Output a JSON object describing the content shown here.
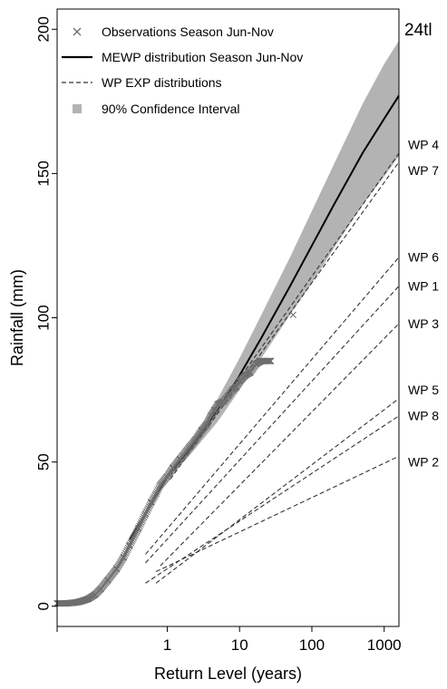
{
  "chart_data": {
    "type": "line",
    "title": "",
    "duration_label": "24tl",
    "xlabel": "Return Level (years)",
    "ylabel": "Rainfall (mm)",
    "x_scale": "log",
    "xlim": [
      0.03,
      1600
    ],
    "ylim": [
      -7,
      207
    ],
    "x_ticks": [
      {
        "value": 0.03,
        "label": ""
      },
      {
        "value": 1,
        "label": "1"
      },
      {
        "value": 10,
        "label": "10"
      },
      {
        "value": 100,
        "label": "100"
      },
      {
        "value": 1000,
        "label": "1000"
      }
    ],
    "y_ticks": [
      0,
      50,
      100,
      150,
      200
    ],
    "grid": false,
    "legend_position": "top-left",
    "legend": [
      {
        "symbol": "cross",
        "label": "Observations Season Jun-Nov"
      },
      {
        "symbol": "solid-line",
        "label": "MEWP distribution Season Jun-Nov"
      },
      {
        "symbol": "dashed-line",
        "label": "WP EXP distributions"
      },
      {
        "symbol": "square",
        "label": "90% Confidence Interval"
      }
    ],
    "colors": {
      "observations": "#6e6e6e",
      "mewp": "#000000",
      "wp": "#333333",
      "ci": "#b3b3b3"
    },
    "series": [
      {
        "name": "Observations Season Jun-Nov",
        "marker": "cross",
        "x": [
          0.03,
          0.04,
          0.05,
          0.06,
          0.07,
          0.08,
          0.1,
          0.12,
          0.15,
          0.2,
          0.25,
          0.3,
          0.4,
          0.5,
          0.6,
          0.7,
          0.8,
          1,
          1.2,
          1.5,
          2,
          2.5,
          3,
          3.5,
          4,
          4.5,
          5,
          6,
          7,
          8,
          9,
          10,
          12,
          14,
          17,
          20,
          27,
          55
        ],
        "y": [
          1,
          1,
          1.2,
          1.5,
          2,
          2.5,
          4,
          6,
          9,
          13,
          17,
          21,
          27,
          32,
          36,
          39,
          42,
          45,
          48,
          51,
          55,
          58,
          61,
          63,
          66,
          68,
          70,
          71,
          73,
          75,
          76,
          78,
          80,
          81,
          84,
          85,
          85,
          101
        ]
      },
      {
        "name": "MEWP distribution Season Jun-Nov",
        "x": [
          0.3,
          0.5,
          1,
          2,
          5,
          10,
          20,
          50,
          100,
          200,
          500,
          1000,
          1600
        ],
        "y": [
          23,
          32,
          45,
          54,
          68,
          80,
          93,
          111,
          125,
          139,
          157,
          169,
          177
        ]
      },
      {
        "name": "90% Confidence Interval",
        "band": true,
        "x": [
          0.3,
          0.5,
          1,
          2,
          5,
          10,
          20,
          50,
          100,
          200,
          500,
          1000,
          1600
        ],
        "y_low": [
          22,
          31,
          44,
          52,
          64,
          75,
          86,
          101,
          112,
          124,
          139,
          149,
          156
        ],
        "y_high": [
          24,
          33,
          46,
          56,
          72,
          86,
          101,
          121,
          137,
          153,
          174,
          188,
          196
        ]
      }
    ],
    "wp_series": [
      {
        "name": "WP 1",
        "x": [
          0.5,
          1600
        ],
        "y": [
          15,
          111
        ]
      },
      {
        "name": "WP 2",
        "x": [
          0.7,
          1600
        ],
        "y": [
          12,
          52
        ]
      },
      {
        "name": "WP 3",
        "x": [
          0.8,
          1600
        ],
        "y": [
          14,
          98
        ]
      },
      {
        "name": "WP 4",
        "x": [
          1.1,
          1600
        ],
        "y": [
          45,
          157
        ]
      },
      {
        "name": "WP 5",
        "x": [
          0.7,
          1600
        ],
        "y": [
          8,
          72
        ]
      },
      {
        "name": "WP 6",
        "x": [
          0.5,
          1600
        ],
        "y": [
          18,
          121
        ]
      },
      {
        "name": "WP 7",
        "x": [
          1.1,
          1600
        ],
        "y": [
          44,
          154
        ]
      },
      {
        "name": "WP 8",
        "x": [
          0.5,
          1600
        ],
        "y": [
          8,
          66
        ]
      }
    ],
    "wp_labels": [
      {
        "name": "WP 4",
        "y": 160
      },
      {
        "name": "WP 7",
        "y": 151
      },
      {
        "name": "WP 6",
        "y": 121
      },
      {
        "name": "WP 1",
        "y": 111
      },
      {
        "name": "WP 3",
        "y": 98
      },
      {
        "name": "WP 5",
        "y": 75
      },
      {
        "name": "WP 8",
        "y": 66
      },
      {
        "name": "WP 2",
        "y": 50
      }
    ]
  }
}
